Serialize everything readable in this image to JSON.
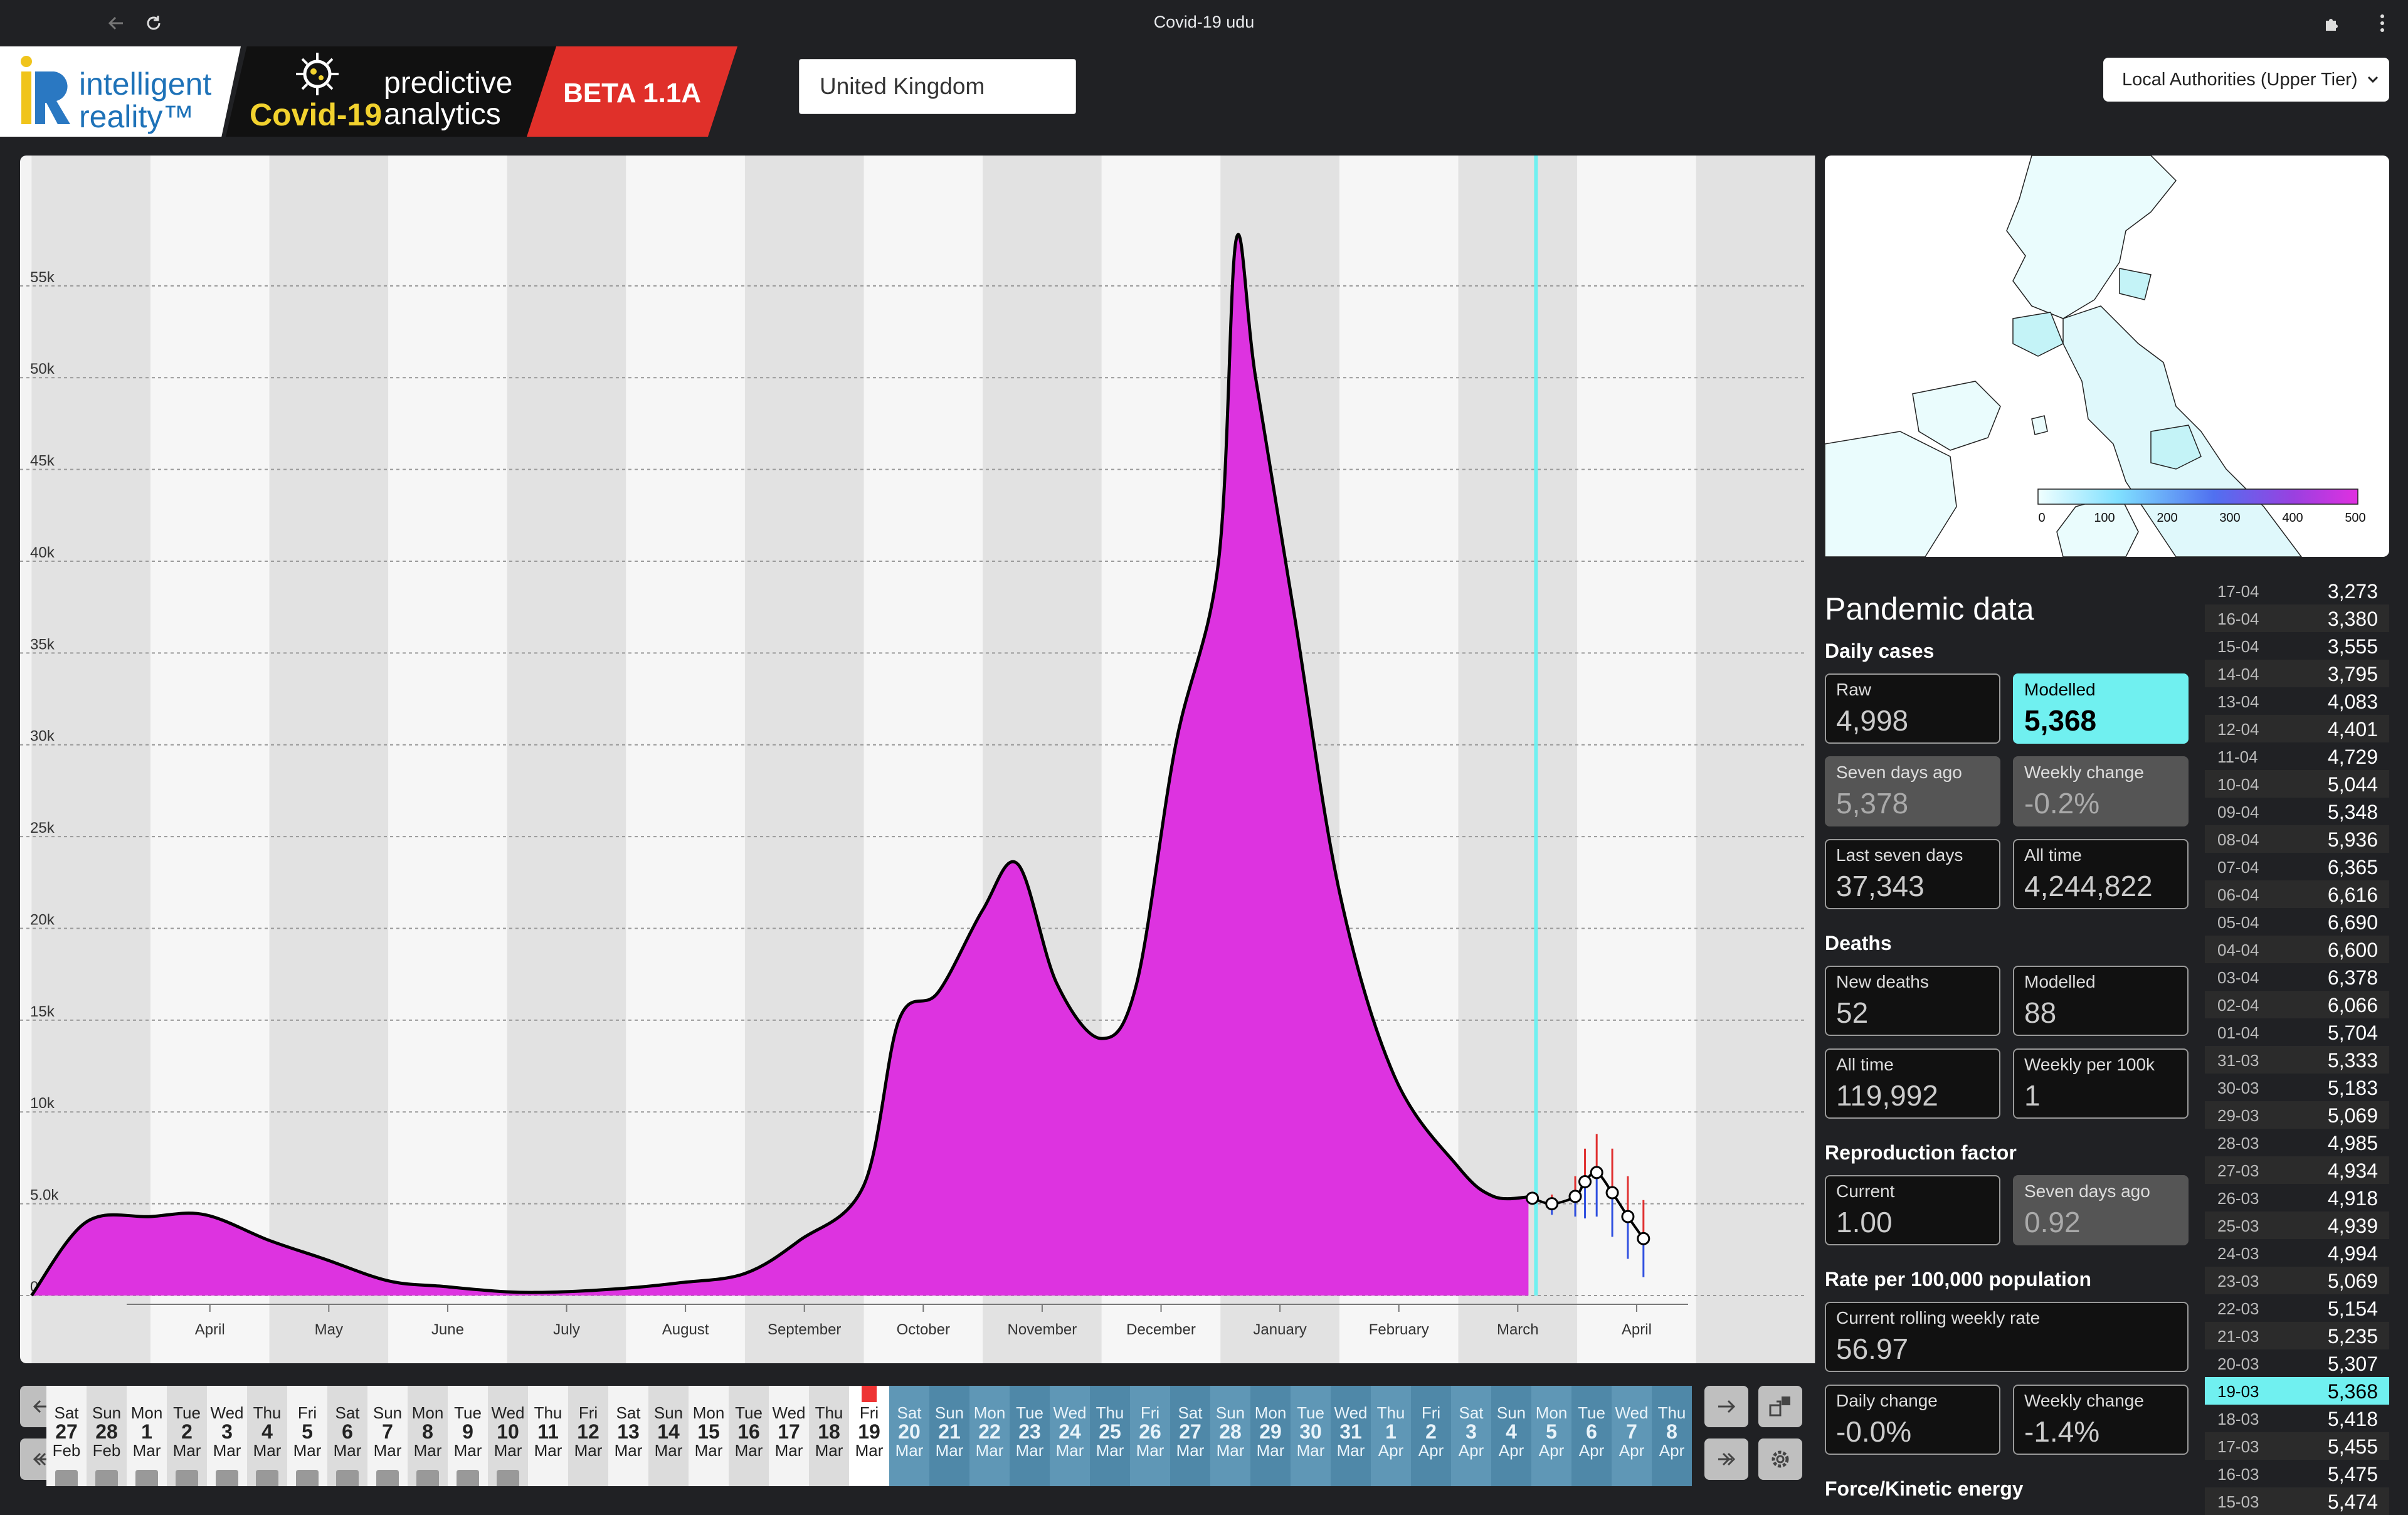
{
  "browser": {
    "title": "Covid-19 udu"
  },
  "header": {
    "logo_ir": "intelligent reality™",
    "logo_covid": "Covid-19",
    "logo_predictive": "predictive analytics",
    "logo_beta": "BETA 1.1A",
    "country_value": "United Kingdom",
    "tier_select": "Local Authorities (Upper Tier)"
  },
  "chart_data": {
    "type": "area",
    "title": "",
    "xlabel": "",
    "ylabel": "",
    "ylim": [
      0,
      58000
    ],
    "y_ticks": [
      "0.0",
      "5.0k",
      "10k",
      "15k",
      "20k",
      "25k",
      "30k",
      "35k",
      "40k",
      "45k",
      "50k",
      "55k"
    ],
    "x_ticks": [
      "April",
      "May",
      "June",
      "July",
      "August",
      "September",
      "October",
      "November",
      "December",
      "January",
      "February",
      "March",
      "April"
    ],
    "grid": "horizontal dashed",
    "fill_color": "#dd33e0",
    "series": [
      {
        "x": [
          "Mar 1",
          "Mar 15",
          "Apr 1",
          "Apr 15",
          "May 1",
          "May 15",
          "Jun 1",
          "Jun 15",
          "Jul 1",
          "Jul 15",
          "Aug 1",
          "Aug 15",
          "Sep 1",
          "Sep 15",
          "Oct 1",
          "Oct 10",
          "Oct 20",
          "Nov 1",
          "Nov 10",
          "Nov 20",
          "Dec 1",
          "Dec 10",
          "Dec 20",
          "Dec 31",
          "Jan 5",
          "Jan 10",
          "Jan 20",
          "Feb 1",
          "Feb 15",
          "Mar 1",
          "Mar 10",
          "Mar 19"
        ],
        "values": [
          0,
          4000,
          4300,
          4400,
          3000,
          2000,
          800,
          500,
          200,
          200,
          400,
          700,
          1200,
          3000,
          6000,
          15000,
          16500,
          21000,
          23500,
          17000,
          14000,
          17000,
          30000,
          40000,
          57500,
          50000,
          37000,
          22000,
          12000,
          7000,
          5400,
          5368
        ]
      }
    ],
    "forecast": {
      "x": [
        "Mar 20",
        "Mar 25",
        "Mar 31",
        "Apr 3",
        "Apr 6",
        "Apr 10",
        "Apr 14",
        "Apr 18"
      ],
      "values": [
        5300,
        5000,
        5400,
        6200,
        6700,
        5600,
        4300,
        3100
      ],
      "upper": [
        5500,
        5500,
        6500,
        8000,
        8800,
        8000,
        6500,
        5200
      ],
      "lower": [
        5100,
        4400,
        4300,
        4200,
        4300,
        3200,
        2000,
        1000
      ]
    }
  },
  "timeline": {
    "days": [
      {
        "dw": "Sat",
        "dn": "27",
        "dm": "Feb"
      },
      {
        "dw": "Sun",
        "dn": "28",
        "dm": "Feb"
      },
      {
        "dw": "Mon",
        "dn": "1",
        "dm": "Mar"
      },
      {
        "dw": "Tue",
        "dn": "2",
        "dm": "Mar"
      },
      {
        "dw": "Wed",
        "dn": "3",
        "dm": "Mar"
      },
      {
        "dw": "Thu",
        "dn": "4",
        "dm": "Mar"
      },
      {
        "dw": "Fri",
        "dn": "5",
        "dm": "Mar"
      },
      {
        "dw": "Sat",
        "dn": "6",
        "dm": "Mar"
      },
      {
        "dw": "Sun",
        "dn": "7",
        "dm": "Mar"
      },
      {
        "dw": "Mon",
        "dn": "8",
        "dm": "Mar"
      },
      {
        "dw": "Tue",
        "dn": "9",
        "dm": "Mar"
      },
      {
        "dw": "Wed",
        "dn": "10",
        "dm": "Mar"
      },
      {
        "dw": "Thu",
        "dn": "11",
        "dm": "Mar"
      },
      {
        "dw": "Fri",
        "dn": "12",
        "dm": "Mar"
      },
      {
        "dw": "Sat",
        "dn": "13",
        "dm": "Mar"
      },
      {
        "dw": "Sun",
        "dn": "14",
        "dm": "Mar"
      },
      {
        "dw": "Mon",
        "dn": "15",
        "dm": "Mar"
      },
      {
        "dw": "Tue",
        "dn": "16",
        "dm": "Mar"
      },
      {
        "dw": "Wed",
        "dn": "17",
        "dm": "Mar"
      },
      {
        "dw": "Thu",
        "dn": "18",
        "dm": "Mar"
      },
      {
        "dw": "Fri",
        "dn": "19",
        "dm": "Mar"
      },
      {
        "dw": "Sat",
        "dn": "20",
        "dm": "Mar"
      },
      {
        "dw": "Sun",
        "dn": "21",
        "dm": "Mar"
      },
      {
        "dw": "Mon",
        "dn": "22",
        "dm": "Mar"
      },
      {
        "dw": "Tue",
        "dn": "23",
        "dm": "Mar"
      },
      {
        "dw": "Wed",
        "dn": "24",
        "dm": "Mar"
      },
      {
        "dw": "Thu",
        "dn": "25",
        "dm": "Mar"
      },
      {
        "dw": "Fri",
        "dn": "26",
        "dm": "Mar"
      },
      {
        "dw": "Sat",
        "dn": "27",
        "dm": "Mar"
      },
      {
        "dw": "Sun",
        "dn": "28",
        "dm": "Mar"
      },
      {
        "dw": "Mon",
        "dn": "29",
        "dm": "Mar"
      },
      {
        "dw": "Tue",
        "dn": "30",
        "dm": "Mar"
      },
      {
        "dw": "Wed",
        "dn": "31",
        "dm": "Mar"
      },
      {
        "dw": "Thu",
        "dn": "1",
        "dm": "Apr"
      },
      {
        "dw": "Fri",
        "dn": "2",
        "dm": "Apr"
      },
      {
        "dw": "Sat",
        "dn": "3",
        "dm": "Apr"
      },
      {
        "dw": "Sun",
        "dn": "4",
        "dm": "Apr"
      },
      {
        "dw": "Mon",
        "dn": "5",
        "dm": "Apr"
      },
      {
        "dw": "Tue",
        "dn": "6",
        "dm": "Apr"
      },
      {
        "dw": "Wed",
        "dn": "7",
        "dm": "Apr"
      },
      {
        "dw": "Thu",
        "dn": "8",
        "dm": "Apr"
      }
    ],
    "selected_index": 20
  },
  "map": {
    "legend_ticks": [
      "0",
      "100",
      "200",
      "300",
      "400",
      "500"
    ]
  },
  "pandemic": {
    "title": "Pandemic data",
    "daily_cases": {
      "label": "Daily cases",
      "raw_label": "Raw",
      "raw": "4,998",
      "modelled_label": "Modelled",
      "modelled": "5,368",
      "seven_ago_label": "Seven days ago",
      "seven_ago": "5,378",
      "weekly_change_label": "Weekly change",
      "weekly_change": "-0.2%",
      "last_seven_label": "Last seven days",
      "last_seven": "37,343",
      "all_time_label": "All time",
      "all_time": "4,244,822"
    },
    "deaths": {
      "label": "Deaths",
      "new_label": "New deaths",
      "new": "52",
      "modelled_label": "Modelled",
      "modelled": "88",
      "all_time_label": "All time",
      "all_time": "119,992",
      "weekly100k_label": "Weekly per 100k",
      "weekly100k": "1"
    },
    "repro": {
      "label": "Reproduction factor",
      "current_label": "Current",
      "current": "1.00",
      "seven_ago_label": "Seven days ago",
      "seven_ago": "0.92"
    },
    "rate": {
      "label": "Rate per 100,000 population",
      "rolling_label": "Current rolling weekly rate",
      "rolling": "56.97",
      "daily_change_label": "Daily change",
      "daily_change": "-0.0%",
      "weekly_change_label": "Weekly change",
      "weekly_change": "-1.4%"
    },
    "force_label": "Force/Kinetic energy"
  },
  "history": [
    {
      "d": "17-04",
      "v": "3,273"
    },
    {
      "d": "16-04",
      "v": "3,380"
    },
    {
      "d": "15-04",
      "v": "3,555"
    },
    {
      "d": "14-04",
      "v": "3,795"
    },
    {
      "d": "13-04",
      "v": "4,083"
    },
    {
      "d": "12-04",
      "v": "4,401"
    },
    {
      "d": "11-04",
      "v": "4,729"
    },
    {
      "d": "10-04",
      "v": "5,044"
    },
    {
      "d": "09-04",
      "v": "5,348"
    },
    {
      "d": "08-04",
      "v": "5,936"
    },
    {
      "d": "07-04",
      "v": "6,365"
    },
    {
      "d": "06-04",
      "v": "6,616"
    },
    {
      "d": "05-04",
      "v": "6,690"
    },
    {
      "d": "04-04",
      "v": "6,600"
    },
    {
      "d": "03-04",
      "v": "6,378"
    },
    {
      "d": "02-04",
      "v": "6,066"
    },
    {
      "d": "01-04",
      "v": "5,704"
    },
    {
      "d": "31-03",
      "v": "5,333"
    },
    {
      "d": "30-03",
      "v": "5,183"
    },
    {
      "d": "29-03",
      "v": "5,069"
    },
    {
      "d": "28-03",
      "v": "4,985"
    },
    {
      "d": "27-03",
      "v": "4,934"
    },
    {
      "d": "26-03",
      "v": "4,918"
    },
    {
      "d": "25-03",
      "v": "4,939"
    },
    {
      "d": "24-03",
      "v": "4,994"
    },
    {
      "d": "23-03",
      "v": "5,069"
    },
    {
      "d": "22-03",
      "v": "5,154"
    },
    {
      "d": "21-03",
      "v": "5,235"
    },
    {
      "d": "20-03",
      "v": "5,307"
    },
    {
      "d": "19-03",
      "v": "5,368"
    },
    {
      "d": "18-03",
      "v": "5,418"
    },
    {
      "d": "17-03",
      "v": "5,455"
    },
    {
      "d": "16-03",
      "v": "5,475"
    },
    {
      "d": "15-03",
      "v": "5,474"
    }
  ],
  "history_selected": 29
}
